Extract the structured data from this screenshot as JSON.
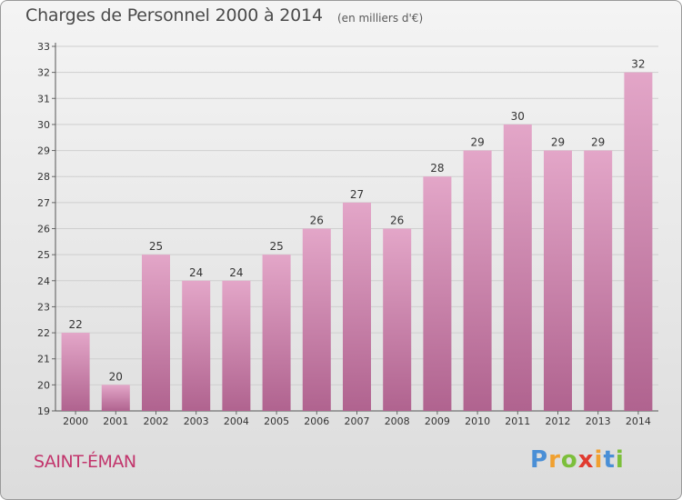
{
  "header": {
    "title": "Charges de Personnel 2000 à 2014",
    "subtitle": "(en milliers d'€)"
  },
  "footer": {
    "commune": "SAINT-ÉMAN",
    "logo": "Proxiti"
  },
  "colors": {
    "bar_top": "#e3a6c8",
    "bar_bottom": "#b0638f",
    "commune_text": "#c2356c",
    "grid": "#cfcfcf"
  },
  "chart_data": {
    "type": "bar",
    "title": "Charges de Personnel 2000 à 2014",
    "subtitle": "(en milliers d'€)",
    "categories": [
      "2000",
      "2001",
      "2002",
      "2003",
      "2004",
      "2005",
      "2006",
      "2007",
      "2008",
      "2009",
      "2010",
      "2011",
      "2012",
      "2013",
      "2014"
    ],
    "values": [
      22,
      20,
      25,
      24,
      24,
      25,
      26,
      27,
      26,
      28,
      29,
      30,
      29,
      29,
      32
    ],
    "xlabel": "",
    "ylabel": "",
    "ylim": [
      19,
      33
    ],
    "yticks": [
      19,
      20,
      21,
      22,
      23,
      24,
      25,
      26,
      27,
      28,
      29,
      30,
      31,
      32,
      33
    ],
    "grid": true,
    "data_labels": true
  }
}
